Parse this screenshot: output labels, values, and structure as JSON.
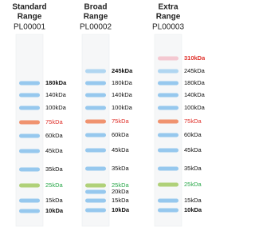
{
  "ladders": [
    {
      "title": [
        "Standard",
        "Range"
      ],
      "code": "PL00001",
      "bands": [
        {
          "label": "180kDa",
          "bold": true,
          "color": "#111111",
          "band": "#8cc2ec"
        },
        {
          "label": "140kDa",
          "bold": false,
          "color": "#111111",
          "band": "#8cc2ec"
        },
        {
          "label": "100kDa",
          "bold": false,
          "color": "#111111",
          "band": "#8cc2ec"
        },
        {
          "label": "75kDa",
          "bold": false,
          "color": "#e0302a",
          "band": "#f0875f"
        },
        {
          "label": "60kDa",
          "bold": false,
          "color": "#111111",
          "band": "#8cc2ec"
        },
        {
          "label": "45kDa",
          "bold": false,
          "color": "#111111",
          "band": "#8cc2ec"
        },
        {
          "label": "35kDa",
          "bold": false,
          "color": "#111111",
          "band": "#8cc2ec"
        },
        {
          "label": "25kDa",
          "bold": false,
          "color": "#2aa84a",
          "band": "#a9cc6a"
        },
        {
          "label": "15kDa",
          "bold": false,
          "color": "#111111",
          "band": "#8cc2ec"
        },
        {
          "label": "10kDa",
          "bold": true,
          "color": "#111111",
          "band": "#8cc2ec"
        }
      ]
    },
    {
      "title": [
        "Broad",
        "Range"
      ],
      "code": "PL00002",
      "bands": [
        {
          "label": "245kDa",
          "bold": true,
          "color": "#111111",
          "band": "#a8d2f0"
        },
        {
          "label": "180kDa",
          "bold": false,
          "color": "#111111",
          "band": "#8cc2ec"
        },
        {
          "label": "140kDa",
          "bold": false,
          "color": "#111111",
          "band": "#8cc2ec"
        },
        {
          "label": "100kDa",
          "bold": false,
          "color": "#111111",
          "band": "#8cc2ec"
        },
        {
          "label": "75kDa",
          "bold": false,
          "color": "#e0302a",
          "band": "#f0875f"
        },
        {
          "label": "60kDa",
          "bold": false,
          "color": "#111111",
          "band": "#8cc2ec"
        },
        {
          "label": "45kDa",
          "bold": false,
          "color": "#111111",
          "band": "#8cc2ec"
        },
        {
          "label": "35kDa",
          "bold": false,
          "color": "#111111",
          "band": "#8cc2ec"
        },
        {
          "label": "25kDa",
          "bold": false,
          "color": "#2aa84a",
          "band": "#a9cc6a"
        },
        {
          "label": "20kDa",
          "bold": false,
          "color": "#111111",
          "band": "#8cc2ec"
        },
        {
          "label": "15kDa",
          "bold": false,
          "color": "#111111",
          "band": "#8cc2ec"
        },
        {
          "label": "10kDa",
          "bold": true,
          "color": "#111111",
          "band": "#8cc2ec"
        }
      ]
    },
    {
      "title": [
        "Extra",
        "Range"
      ],
      "code": "PL00003",
      "bands": [
        {
          "label": "310kDa",
          "bold": true,
          "color": "#e0302a",
          "band": "#f4c2cc"
        },
        {
          "label": "245kDa",
          "bold": false,
          "color": "#111111",
          "band": "#a8d2f0"
        },
        {
          "label": "180kDa",
          "bold": false,
          "color": "#111111",
          "band": "#8cc2ec"
        },
        {
          "label": "140kDa",
          "bold": false,
          "color": "#111111",
          "band": "#8cc2ec"
        },
        {
          "label": "100kDa",
          "bold": false,
          "color": "#111111",
          "band": "#8cc2ec"
        },
        {
          "label": "75kDa",
          "bold": false,
          "color": "#e0302a",
          "band": "#f0875f"
        },
        {
          "label": "60kDa",
          "bold": false,
          "color": "#111111",
          "band": "#8cc2ec"
        },
        {
          "label": "45kDa",
          "bold": false,
          "color": "#111111",
          "band": "#8cc2ec"
        },
        {
          "label": "35kDa",
          "bold": false,
          "color": "#111111",
          "band": "#8cc2ec"
        },
        {
          "label": "25kDa",
          "bold": false,
          "color": "#2aa84a",
          "band": "#a9cc6a"
        },
        {
          "label": "15kDa",
          "bold": false,
          "color": "#111111",
          "band": "#8cc2ec"
        },
        {
          "label": "10kDa",
          "bold": true,
          "color": "#111111",
          "band": "#8cc2ec"
        }
      ]
    }
  ]
}
